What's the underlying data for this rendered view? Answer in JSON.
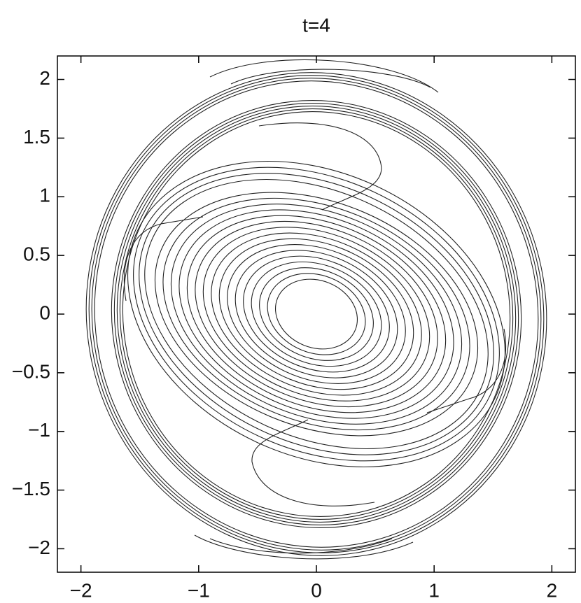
{
  "chart_data": {
    "type": "contour",
    "title": "t=4",
    "xlim": [
      -2.2,
      2.2
    ],
    "ylim": [
      -2.2,
      2.2
    ],
    "xticks": [
      {
        "value": -2,
        "label": "−2"
      },
      {
        "value": -1,
        "label": "−1"
      },
      0,
      1,
      2
    ],
    "yticks": [
      {
        "value": -2,
        "label": "−2"
      },
      {
        "value": -1.5,
        "label": "−1.5"
      },
      {
        "value": -1,
        "label": "−1"
      },
      {
        "value": -0.5,
        "label": "−0.5"
      },
      0,
      0.5,
      1,
      1.5,
      2
    ],
    "color": "#222222"
  }
}
